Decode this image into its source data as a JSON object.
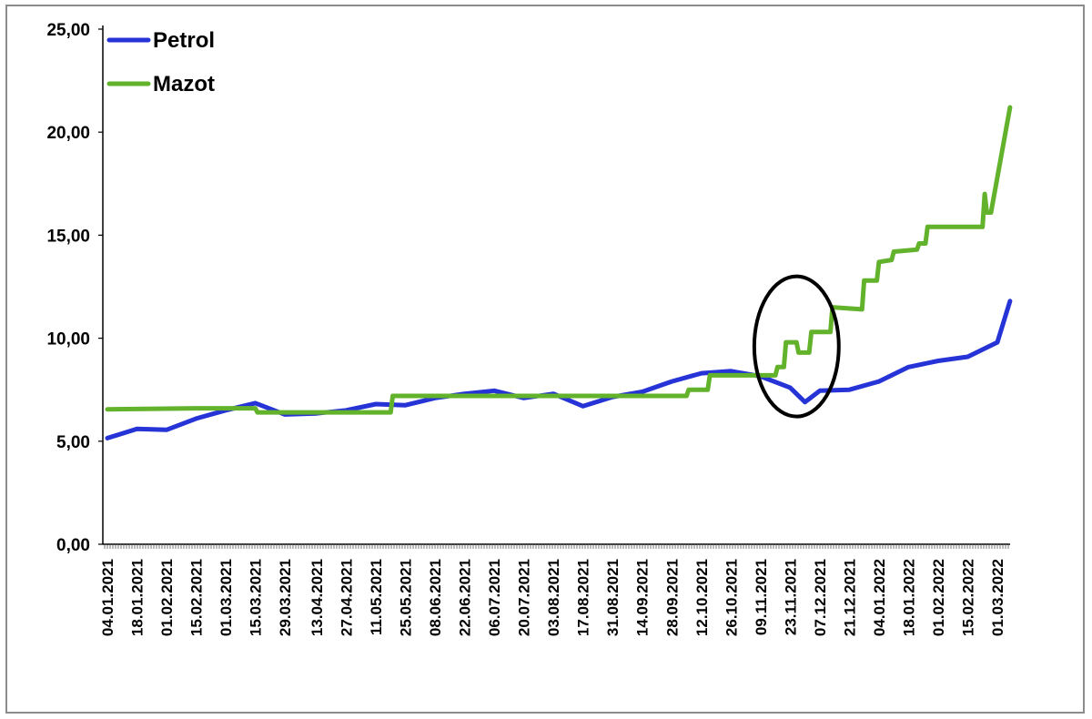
{
  "chart_data": {
    "type": "line",
    "title": "",
    "xlabel": "",
    "ylabel": "",
    "ylim": [
      0,
      25
    ],
    "y_ticks": [
      "0,00",
      "5,00",
      "10,00",
      "15,00",
      "20,00",
      "25,00"
    ],
    "x_ticks": [
      "04.01.2021",
      "18.01.2021",
      "01.02.2021",
      "15.02.2021",
      "01.03.2021",
      "15.03.2021",
      "29.03.2021",
      "13.04.2021",
      "27.04.2021",
      "11.05.2021",
      "25.05.2021",
      "08.06.2021",
      "22.06.2021",
      "06.07.2021",
      "20.07.2021",
      "03.08.2021",
      "17.08.2021",
      "31.08.2021",
      "14.09.2021",
      "28.09.2021",
      "12.10.2021",
      "26.10.2021",
      "09.11.2021",
      "23.11.2021",
      "07.12.2021",
      "21.12.2021",
      "04.01.2022",
      "18.01.2022",
      "01.02.2022",
      "15.02.2022",
      "01.03.2022"
    ],
    "legend_position": "top-left",
    "grid": false,
    "series": [
      {
        "name": "Petrol",
        "color": "#2633d6",
        "points": [
          [
            "04.01.2021",
            5.15
          ],
          [
            "18.01.2021",
            5.6
          ],
          [
            "01.02.2021",
            5.55
          ],
          [
            "15.02.2021",
            6.1
          ],
          [
            "01.03.2021",
            6.5
          ],
          [
            "15.03.2021",
            6.85
          ],
          [
            "29.03.2021",
            6.3
          ],
          [
            "13.04.2021",
            6.35
          ],
          [
            "27.04.2021",
            6.5
          ],
          [
            "11.05.2021",
            6.8
          ],
          [
            "25.05.2021",
            6.75
          ],
          [
            "08.06.2021",
            7.1
          ],
          [
            "22.06.2021",
            7.3
          ],
          [
            "06.07.2021",
            7.45
          ],
          [
            "20.07.2021",
            7.1
          ],
          [
            "03.08.2021",
            7.3
          ],
          [
            "17.08.2021",
            6.7
          ],
          [
            "31.08.2021",
            7.15
          ],
          [
            "14.09.2021",
            7.4
          ],
          [
            "28.09.2021",
            7.9
          ],
          [
            "12.10.2021",
            8.3
          ],
          [
            "26.10.2021",
            8.4
          ],
          [
            "09.11.2021",
            8.15
          ],
          [
            "23.11.2021",
            7.6
          ],
          [
            "30.11.2021",
            6.9
          ],
          [
            "07.12.2021",
            7.45
          ],
          [
            "21.12.2021",
            7.5
          ],
          [
            "04.01.2022",
            7.9
          ],
          [
            "18.01.2022",
            8.6
          ],
          [
            "01.02.2022",
            8.9
          ],
          [
            "15.02.2022",
            9.1
          ],
          [
            "01.03.2022",
            9.8
          ],
          [
            "07.03.2022",
            11.8
          ]
        ]
      },
      {
        "name": "Mazot",
        "color": "#63b22b",
        "points": [
          [
            "04.01.2021",
            6.55
          ],
          [
            "15.02.2021",
            6.6
          ],
          [
            "15.03.2021",
            6.6
          ],
          [
            "16.03.2021",
            6.4
          ],
          [
            "18.05.2021",
            6.4
          ],
          [
            "19.05.2021",
            7.2
          ],
          [
            "05.10.2021",
            7.2
          ],
          [
            "06.10.2021",
            7.5
          ],
          [
            "15.10.2021",
            7.5
          ],
          [
            "16.10.2021",
            8.2
          ],
          [
            "16.11.2021",
            8.2
          ],
          [
            "17.11.2021",
            8.6
          ],
          [
            "20.11.2021",
            8.6
          ],
          [
            "21.11.2021",
            9.8
          ],
          [
            "26.11.2021",
            9.8
          ],
          [
            "27.11.2021",
            9.3
          ],
          [
            "02.12.2021",
            9.3
          ],
          [
            "03.12.2021",
            10.3
          ],
          [
            "12.12.2021",
            10.3
          ],
          [
            "13.12.2021",
            11.5
          ],
          [
            "27.12.2021",
            11.4
          ],
          [
            "28.12.2021",
            12.8
          ],
          [
            "03.01.2022",
            12.8
          ],
          [
            "04.01.2022",
            13.7
          ],
          [
            "10.01.2022",
            13.8
          ],
          [
            "11.01.2022",
            14.2
          ],
          [
            "22.01.2022",
            14.3
          ],
          [
            "23.01.2022",
            14.6
          ],
          [
            "26.01.2022",
            14.6
          ],
          [
            "27.01.2022",
            15.4
          ],
          [
            "22.02.2022",
            15.4
          ],
          [
            "23.02.2022",
            17.0
          ],
          [
            "24.02.2022",
            16.1
          ],
          [
            "26.02.2022",
            16.1
          ],
          [
            "07.03.2022",
            21.2
          ]
        ]
      }
    ],
    "annotations": [
      {
        "type": "ellipse",
        "x_center": "26.11.2021",
        "y_center": 9.6,
        "x_half_width_days": 20,
        "y_half_height": 3.4,
        "color": "#000000"
      }
    ]
  }
}
